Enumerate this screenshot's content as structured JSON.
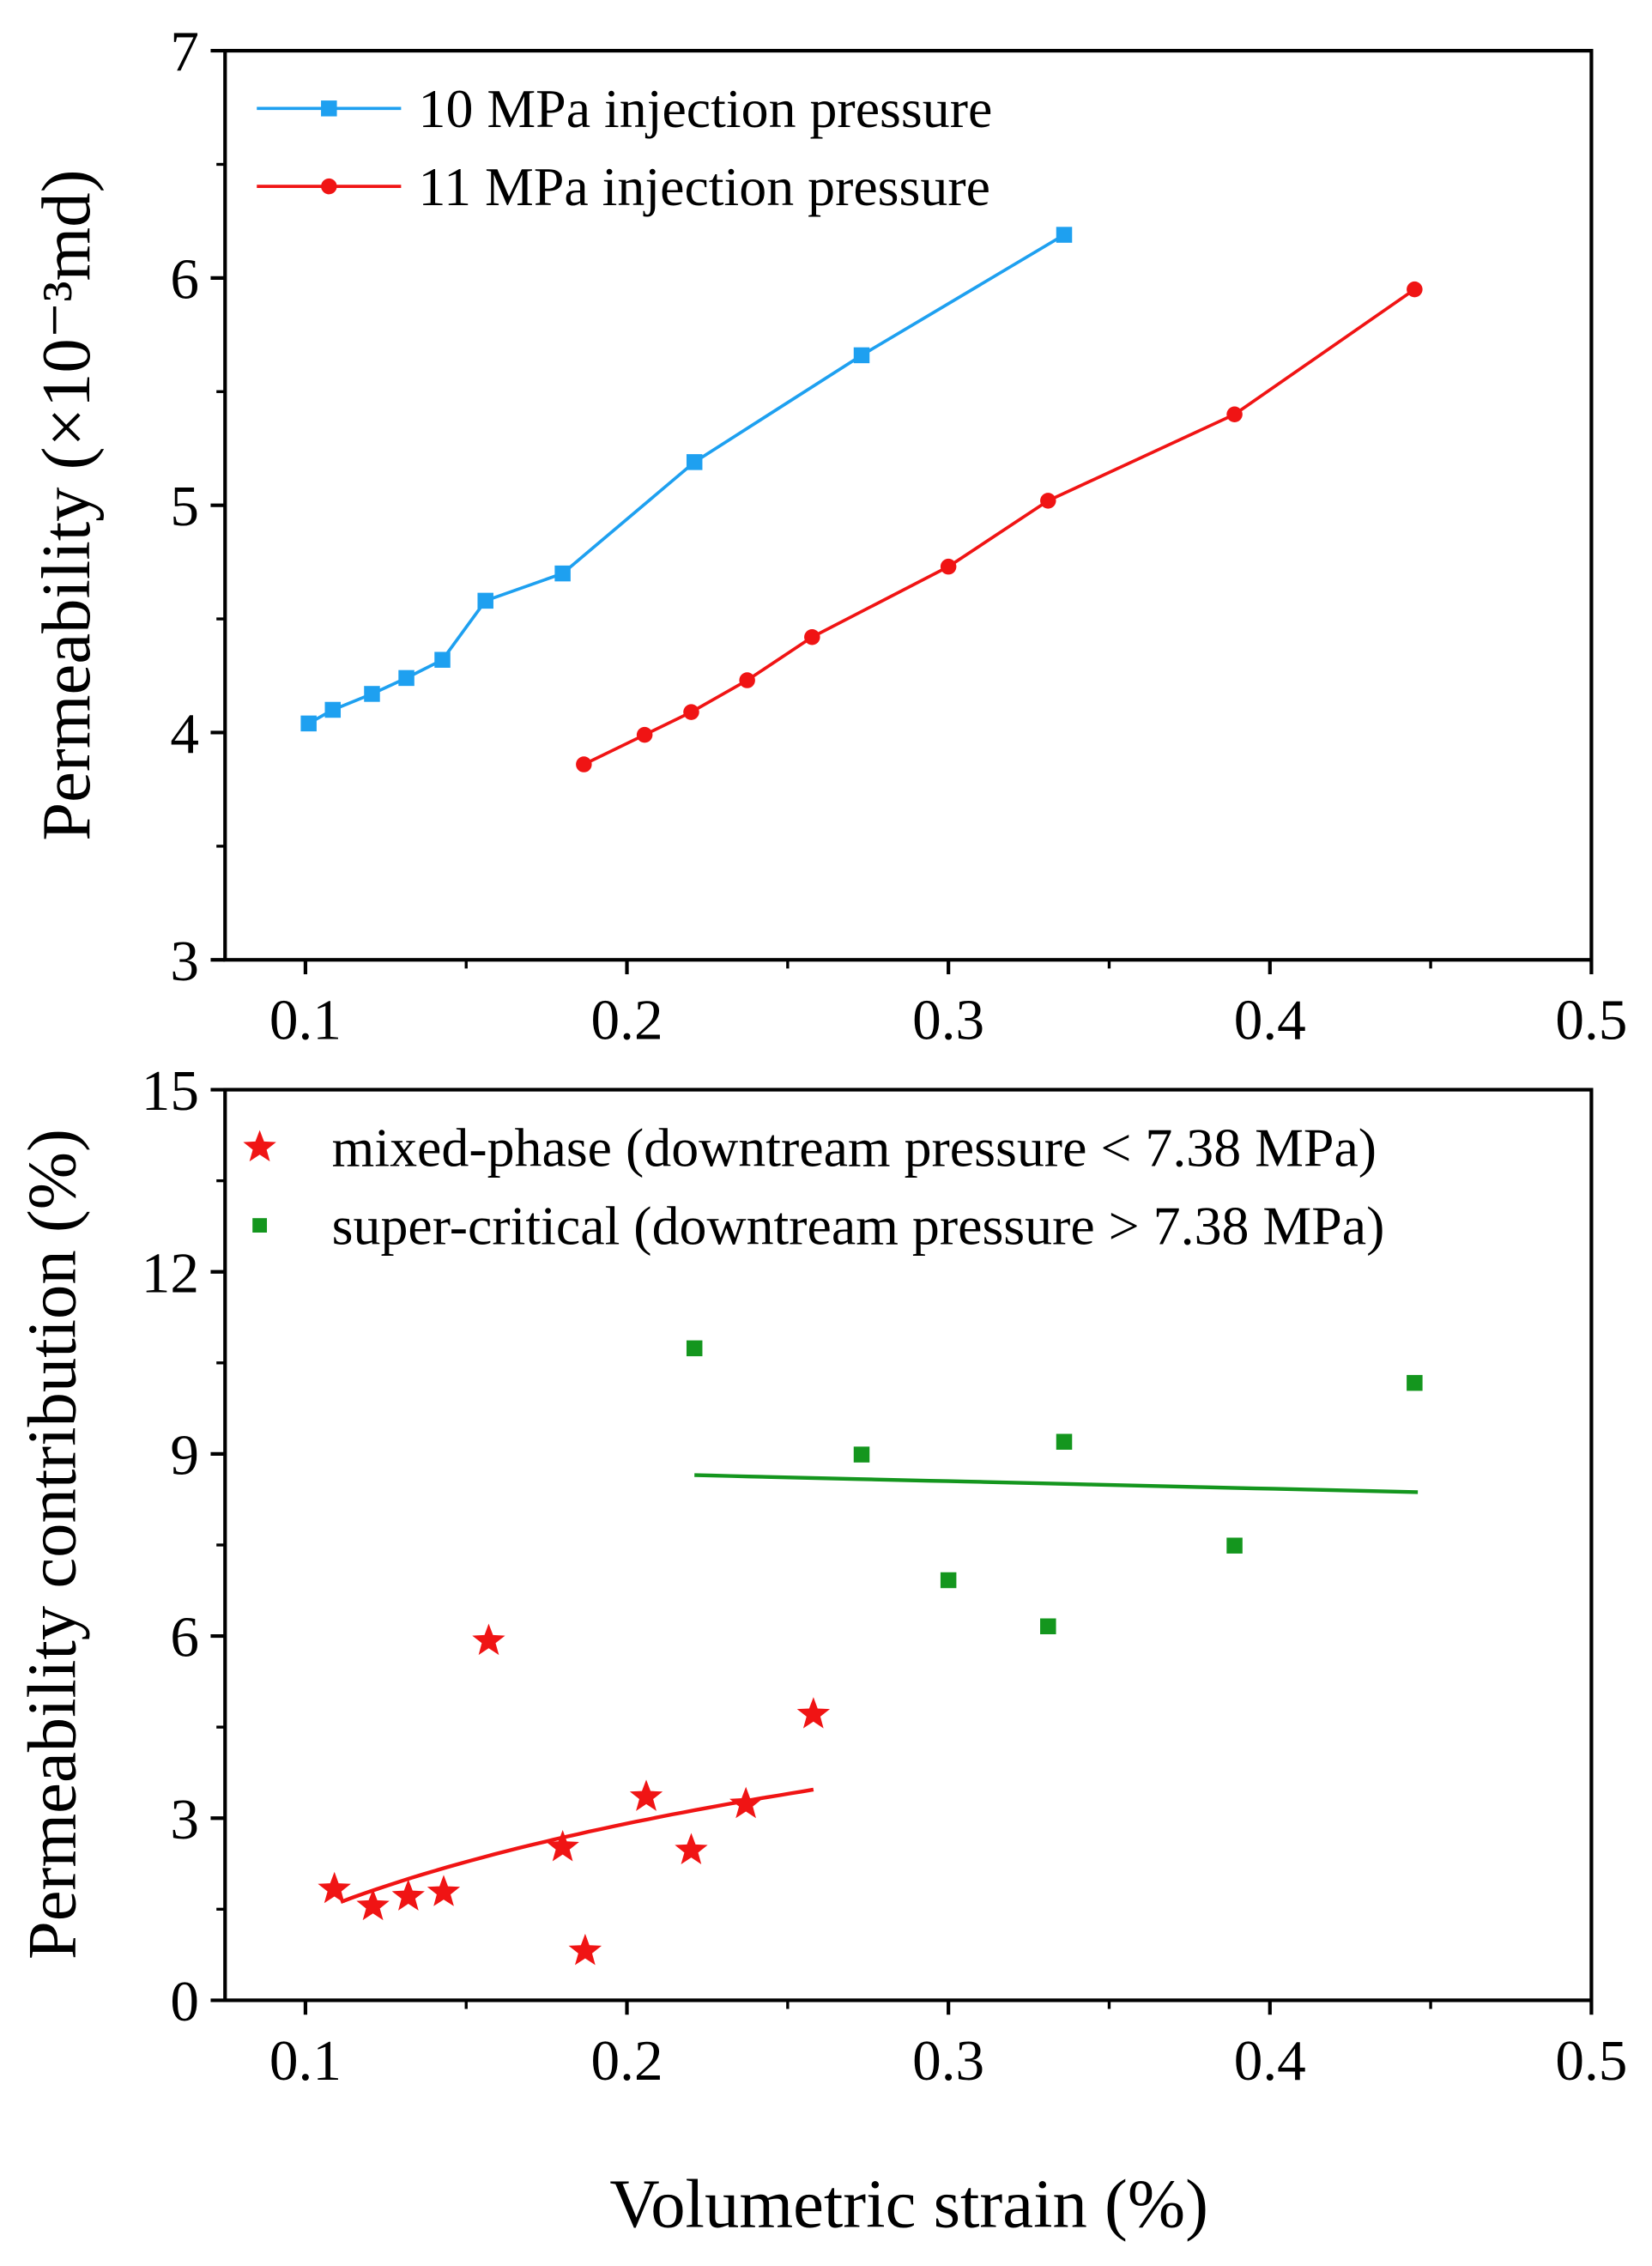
{
  "chart_data": [
    {
      "type": "line",
      "xlabel": "",
      "ylabel": "Permeability (×10⁻³md)",
      "xlim": [
        0.075,
        0.5
      ],
      "ylim": [
        3,
        7
      ],
      "xticks": [
        "0.1",
        "0.2",
        "0.3",
        "0.4",
        "0.5"
      ],
      "yticks": [
        "3",
        "4",
        "5",
        "6",
        "7"
      ],
      "legend_position": "top-left",
      "series": [
        {
          "name": "10 MPa injection pressure",
          "color": "#1ea0f0",
          "marker": "square",
          "x": [
            0.101,
            0.1085,
            0.1207,
            0.1314,
            0.1426,
            0.156,
            0.18,
            0.221,
            0.273,
            0.336
          ],
          "y": [
            4.04,
            4.1,
            4.17,
            4.24,
            4.32,
            4.58,
            4.7,
            5.19,
            5.66,
            6.19
          ]
        },
        {
          "name": "11 MPa injection pressure",
          "color": "#f01414",
          "marker": "circle",
          "x": [
            0.1866,
            0.2055,
            0.22,
            0.2374,
            0.2576,
            0.3,
            0.331,
            0.389,
            0.445
          ],
          "y": [
            3.86,
            3.99,
            4.09,
            4.23,
            4.42,
            4.73,
            5.02,
            5.4,
            5.95
          ]
        }
      ]
    },
    {
      "type": "scatter",
      "xlabel": "Volumetric strain (%)",
      "ylabel": "Permeability contribution (%)",
      "xlim": [
        0.075,
        0.5
      ],
      "ylim": [
        0,
        15
      ],
      "xticks": [
        "0.1",
        "0.2",
        "0.3",
        "0.4",
        "0.5"
      ],
      "yticks": [
        "0",
        "3",
        "6",
        "9",
        "12",
        "15"
      ],
      "legend_position": "top-left",
      "series": [
        {
          "name": "mixed-phase (downtream pressure < 7.38 MPa)",
          "color": "#f01414",
          "marker": "star",
          "x": [
            0.109,
            0.121,
            0.132,
            0.143,
            0.157,
            0.18,
            0.187,
            0.206,
            0.22,
            0.237,
            0.258
          ],
          "y": [
            1.83,
            1.55,
            1.71,
            1.78,
            5.92,
            2.52,
            0.81,
            3.35,
            2.47,
            3.23,
            4.71
          ],
          "fit": {
            "kind": "log",
            "x_range": [
              0.111,
              0.258
            ],
            "y_range": [
              1.62,
              3.47
            ]
          }
        },
        {
          "name": "super-critical (downtream pressure > 7.38 MPa)",
          "color": "#14961e",
          "marker": "square",
          "x": [
            0.221,
            0.273,
            0.3,
            0.331,
            0.336,
            0.389,
            0.445
          ],
          "y": [
            10.74,
            8.99,
            6.92,
            6.16,
            9.2,
            7.49,
            10.17
          ],
          "fit": {
            "kind": "linear",
            "x_range": [
              0.221,
              0.446
            ],
            "y_range": [
              8.65,
              8.37
            ]
          }
        }
      ]
    }
  ]
}
